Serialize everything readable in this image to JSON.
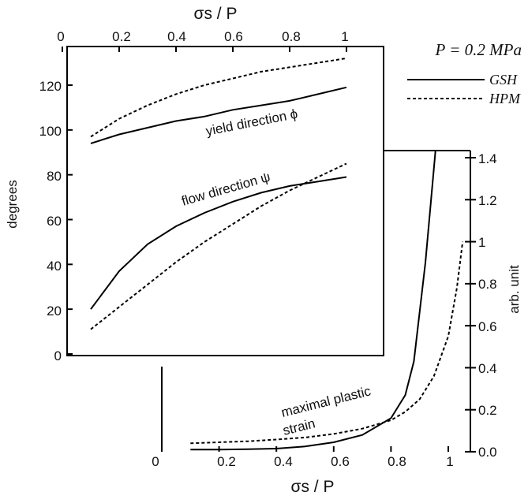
{
  "legend": {
    "pressure": "P = 0.2 MPa",
    "entries": [
      {
        "label": "GSH",
        "style": "solid"
      },
      {
        "label": "HPM",
        "style": "dashed"
      }
    ]
  },
  "chart_data": [
    {
      "type": "line",
      "panel": "inset",
      "xlabel": "σs / P",
      "ylabel": "degrees",
      "xlim": [
        0,
        1
      ],
      "ylim": [
        0,
        130
      ],
      "xticks": [
        "0",
        "0.2",
        "0.4",
        "0.6",
        "0.8",
        "1"
      ],
      "yticks": [
        "0",
        "20",
        "40",
        "60",
        "80",
        "100",
        "120"
      ],
      "xtick_values": [
        0,
        0.2,
        0.4,
        0.6,
        0.8,
        1.0
      ],
      "ytick_values": [
        0,
        20,
        40,
        60,
        80,
        100,
        120
      ],
      "annotations": [
        {
          "text": "yield direction ϕ",
          "x": 0.54,
          "y": 107
        },
        {
          "text": "flow direction ψ",
          "x": 0.32,
          "y": 71
        }
      ],
      "series": [
        {
          "name": "GSH",
          "curve": "yield direction",
          "style": "solid",
          "x": [
            0.1,
            0.2,
            0.3,
            0.4,
            0.5,
            0.6,
            0.7,
            0.8,
            0.9,
            1.0
          ],
          "y": [
            94,
            98,
            101,
            104,
            106,
            109,
            111,
            113,
            116,
            119
          ]
        },
        {
          "name": "HPM",
          "curve": "yield direction",
          "style": "dashed",
          "x": [
            0.1,
            0.2,
            0.3,
            0.4,
            0.5,
            0.6,
            0.7,
            0.8,
            0.9,
            1.0
          ],
          "y": [
            97,
            105,
            111,
            116,
            120,
            123,
            126,
            128,
            130,
            132
          ]
        },
        {
          "name": "GSH",
          "curve": "flow direction",
          "style": "solid",
          "x": [
            0.1,
            0.2,
            0.3,
            0.4,
            0.5,
            0.6,
            0.7,
            0.8,
            0.9,
            1.0
          ],
          "y": [
            20,
            37,
            49,
            57,
            63,
            68,
            72,
            75,
            77,
            79
          ]
        },
        {
          "name": "HPM",
          "curve": "flow direction",
          "style": "dashed",
          "x": [
            0.1,
            0.2,
            0.3,
            0.4,
            0.5,
            0.6,
            0.7,
            0.8,
            0.9,
            1.0
          ],
          "y": [
            11,
            21,
            31,
            41,
            50,
            58,
            66,
            73,
            79,
            85
          ]
        }
      ]
    },
    {
      "type": "line",
      "panel": "main",
      "xlabel": "σs / P",
      "ylabel": "arb. unit",
      "xlim": [
        0,
        1.05
      ],
      "ylim": [
        0,
        1.43
      ],
      "xticks": [
        "0",
        "0.2",
        "0.4",
        "0.6",
        "0.8",
        "1"
      ],
      "yticks": [
        "0.0",
        "0.2",
        "0.4",
        "0.6",
        "0.8",
        "1",
        "1.2",
        "1.4"
      ],
      "xtick_values": [
        0,
        0.2,
        0.4,
        0.6,
        0.8,
        1.0
      ],
      "ytick_values": [
        0,
        0.2,
        0.4,
        0.6,
        0.8,
        1.0,
        1.2,
        1.4
      ],
      "annotations": [
        {
          "text": "maximal plastic",
          "x": 0.74,
          "y": 0.18
        },
        {
          "text": "strain",
          "x": 0.6,
          "y": 0.12
        }
      ],
      "series": [
        {
          "name": "GSH",
          "curve": "maximal plastic strain",
          "style": "solid",
          "x": [
            0.1,
            0.2,
            0.3,
            0.4,
            0.5,
            0.6,
            0.7,
            0.8,
            0.85,
            0.88,
            0.92,
            0.955
          ],
          "y": [
            0.01,
            0.01,
            0.012,
            0.015,
            0.025,
            0.045,
            0.08,
            0.16,
            0.27,
            0.43,
            0.9,
            1.43
          ]
        },
        {
          "name": "HPM",
          "curve": "maximal plastic strain",
          "style": "dashed",
          "x": [
            0.1,
            0.2,
            0.3,
            0.4,
            0.5,
            0.6,
            0.7,
            0.8,
            0.85,
            0.9,
            0.95,
            1.0,
            1.03,
            1.05
          ],
          "y": [
            0.04,
            0.045,
            0.05,
            0.058,
            0.068,
            0.085,
            0.11,
            0.15,
            0.19,
            0.25,
            0.36,
            0.55,
            0.78,
            1.0
          ]
        }
      ]
    }
  ]
}
